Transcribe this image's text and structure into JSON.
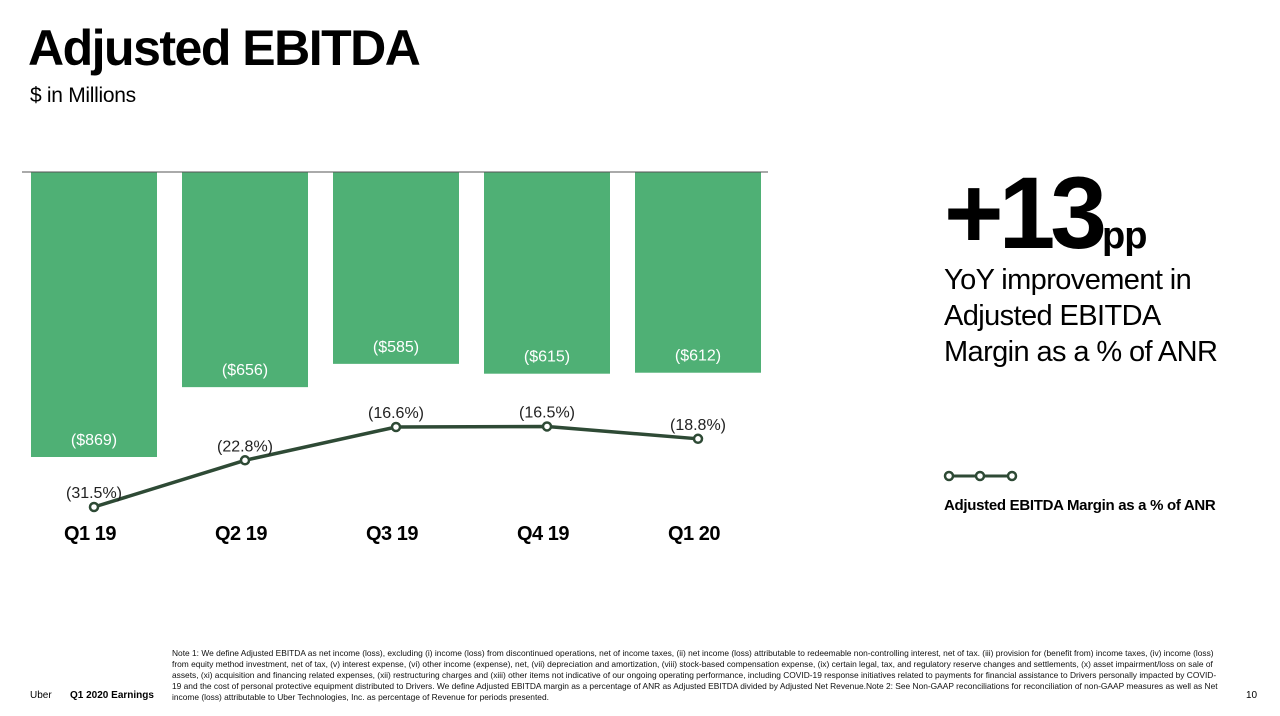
{
  "header": {
    "title": "Adjusted EBITDA",
    "subtitle": "$ in Millions"
  },
  "chart_data": {
    "type": "bar",
    "categories": [
      "Q1 19",
      "Q2 19",
      "Q3 19",
      "Q4 19",
      "Q1 20"
    ],
    "series": [
      {
        "values": [
          -869,
          -656,
          -585,
          -615,
          -612
        ],
        "labels": [
          "($869)",
          "($656)",
          "($585)",
          "($615)",
          "($612)"
        ],
        "color": "#4FB075"
      },
      {
        "name": "Adjusted EBITDA Margin as a % of ANR",
        "type": "line",
        "values": [
          -31.5,
          -22.8,
          -16.6,
          -16.5,
          -18.8
        ],
        "labels": [
          "(31.5%)",
          "(22.8%)",
          "(16.6%)",
          "(16.5%)",
          "(18.8%)"
        ],
        "color": "#2E4A35"
      }
    ],
    "title": "Adjusted EBITDA",
    "subtitle": "$ in Millions",
    "legend": "right",
    "grid": false
  },
  "kpi": {
    "value": "+13",
    "unit": "pp",
    "caption": "YoY improvement in Adjusted EBITDA Margin as a % of ANR"
  },
  "legend": {
    "label": "Adjusted EBITDA Margin as a % of ANR"
  },
  "footer": {
    "brand": "Uber",
    "doc": "Q1 2020 Earnings",
    "note": "Note 1: We define Adjusted EBITDA as net income (loss), excluding (i) income (loss) from discontinued operations, net of income taxes, (ii) net income (loss) attributable to redeemable non-controlling interest, net of tax. (iii) provision for (benefit from) income taxes, (iv) income (loss) from equity method investment, net of tax, (v) interest expense, (vi) other income (expense), net, (vii) depreciation and amortization, (viii) stock-based compensation expense, (ix) certain legal, tax, and regulatory reserve changes and settlements, (x) asset impairment/loss on sale of assets, (xi) acquisition and financing related expenses, (xii) restructuring charges and (xiii) other items not indicative of our ongoing operating performance, including COVID-19 response initiatives related to payments for financial assistance to Drivers personally impacted by COVID-19 and the cost of personal protective equipment distributed to Drivers. We define Adjusted EBITDA margin as a percentage of ANR as Adjusted EBITDA divided by Adjusted Net Revenue.Note 2: See Non-GAAP reconciliations for reconciliation of non-GAAP measures as well as Net income (loss) attributable to Uber Technologies, Inc. as percentage of Revenue for periods presented.",
    "page": "10"
  },
  "colors": {
    "bar": "#4FB075",
    "line": "#2E4A35",
    "baseline": "#555555"
  }
}
